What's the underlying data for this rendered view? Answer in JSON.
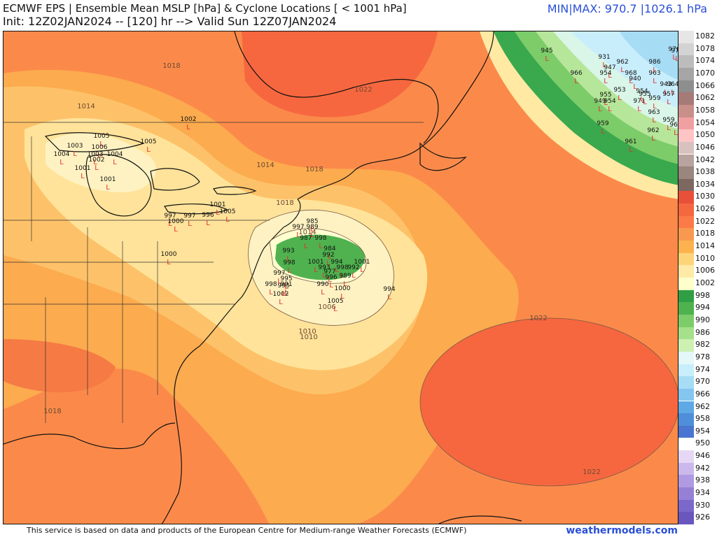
{
  "header": {
    "title": "ECMWF EPS | Ensemble Mean MSLP [hPa] & Cyclone Locations [ < 1001 hPa]",
    "init": "Init: 12Z02JAN2024 -- [120] hr --> Valid Sun 12Z07JAN2024",
    "minmax": "MIN|MAX: 970.7 |1026.1 hPa"
  },
  "footer": {
    "credit": "This service is based on data and products of the European Centre for Medium-range Weather Forecasts (ECMWF)",
    "site": "weathermodels.com"
  },
  "colorbar": [
    {
      "label": "1082",
      "color": "#e6e6e6"
    },
    {
      "label": "1078",
      "color": "#d3d3d3"
    },
    {
      "label": "1074",
      "color": "#bcbcbc"
    },
    {
      "label": "1070",
      "color": "#a5a5a5"
    },
    {
      "label": "1066",
      "color": "#8e8e8e"
    },
    {
      "label": "1062",
      "color": "#a67a76"
    },
    {
      "label": "1058",
      "color": "#c98f8a"
    },
    {
      "label": "1054",
      "color": "#f0a0a0"
    },
    {
      "label": "1050",
      "color": "#ffc4c4"
    },
    {
      "label": "1046",
      "color": "#d8c2bf"
    },
    {
      "label": "1042",
      "color": "#b8a39f"
    },
    {
      "label": "1038",
      "color": "#9a857f"
    },
    {
      "label": "1034",
      "color": "#7d6861"
    },
    {
      "label": "1030",
      "color": "#e8503a"
    },
    {
      "label": "1026",
      "color": "#f5673f"
    },
    {
      "label": "1022",
      "color": "#fb7a47"
    },
    {
      "label": "1018",
      "color": "#f99950"
    },
    {
      "label": "1014",
      "color": "#fcb24f"
    },
    {
      "label": "1010",
      "color": "#fdd47a"
    },
    {
      "label": "1006",
      "color": "#ffeaa8"
    },
    {
      "label": "1002",
      "color": "#ffffcc"
    },
    {
      "label": "998",
      "color": "#2f9e44"
    },
    {
      "label": "994",
      "color": "#4fb24f"
    },
    {
      "label": "990",
      "color": "#7ccc6a"
    },
    {
      "label": "986",
      "color": "#a6e08a"
    },
    {
      "label": "982",
      "color": "#cdf0b3"
    },
    {
      "label": "978",
      "color": "#e5f8f8"
    },
    {
      "label": "974",
      "color": "#c8eefc"
    },
    {
      "label": "970",
      "color": "#a7dcf5"
    },
    {
      "label": "966",
      "color": "#84c6ef"
    },
    {
      "label": "962",
      "color": "#5ea9e6"
    },
    {
      "label": "958",
      "color": "#4f8ed9"
    },
    {
      "label": "954",
      "color": "#4a75d0"
    },
    {
      "label": "950",
      "color": "#ffffff"
    },
    {
      "label": "946",
      "color": "#e6d8f5"
    },
    {
      "label": "942",
      "color": "#cbb8ec"
    },
    {
      "label": "938",
      "color": "#b09ae2"
    },
    {
      "label": "934",
      "color": "#9580d6"
    },
    {
      "label": "930",
      "color": "#7c68ca"
    },
    {
      "label": "926",
      "color": "#6a56bd"
    }
  ],
  "contour_labels": [
    {
      "text": "1018"
    },
    {
      "text": "1014"
    },
    {
      "text": "1022"
    },
    {
      "text": "1014"
    },
    {
      "text": "1018"
    },
    {
      "text": "1018"
    },
    {
      "text": "1014"
    },
    {
      "text": "1010"
    },
    {
      "text": "1006"
    },
    {
      "text": "1010"
    },
    {
      "text": "1022"
    },
    {
      "text": "1022"
    },
    {
      "text": "1018"
    }
  ],
  "cyclone_labels": [
    {
      "text": "1002"
    },
    {
      "text": "1005"
    },
    {
      "text": "1003"
    },
    {
      "text": "1006"
    },
    {
      "text": "1004"
    },
    {
      "text": "1003"
    },
    {
      "text": "1002"
    },
    {
      "text": "1004"
    },
    {
      "text": "1001"
    },
    {
      "text": "1001"
    },
    {
      "text": "1005"
    },
    {
      "text": "1001"
    },
    {
      "text": "1005"
    },
    {
      "text": "997"
    },
    {
      "text": "1000"
    },
    {
      "text": "997"
    },
    {
      "text": "996"
    },
    {
      "text": "1000"
    },
    {
      "text": "997"
    },
    {
      "text": "985"
    },
    {
      "text": "989"
    },
    {
      "text": "987"
    },
    {
      "text": "998"
    },
    {
      "text": "993"
    },
    {
      "text": "984"
    },
    {
      "text": "992"
    },
    {
      "text": "1001"
    },
    {
      "text": "994"
    },
    {
      "text": "1001"
    },
    {
      "text": "993"
    },
    {
      "text": "998"
    },
    {
      "text": "998"
    },
    {
      "text": "992"
    },
    {
      "text": "989"
    },
    {
      "text": "977"
    },
    {
      "text": "996"
    },
    {
      "text": "990"
    },
    {
      "text": "1000"
    },
    {
      "text": "1005"
    },
    {
      "text": "994"
    },
    {
      "text": "995"
    },
    {
      "text": "991"
    },
    {
      "text": "998"
    },
    {
      "text": "1002"
    },
    {
      "text": "993"
    },
    {
      "text": "997"
    },
    {
      "text": "945"
    },
    {
      "text": "966"
    },
    {
      "text": "931"
    },
    {
      "text": "962"
    },
    {
      "text": "947"
    },
    {
      "text": "954"
    },
    {
      "text": "968"
    },
    {
      "text": "940"
    },
    {
      "text": "963"
    },
    {
      "text": "986"
    },
    {
      "text": "970"
    },
    {
      "text": "976"
    },
    {
      "text": "955"
    },
    {
      "text": "953"
    },
    {
      "text": "949"
    },
    {
      "text": "954"
    },
    {
      "text": "959"
    },
    {
      "text": "971"
    },
    {
      "text": "943"
    },
    {
      "text": "964"
    },
    {
      "text": "957"
    },
    {
      "text": "963"
    },
    {
      "text": "959"
    },
    {
      "text": "962"
    },
    {
      "text": "966"
    },
    {
      "text": "961"
    },
    {
      "text": "959"
    },
    {
      "text": "955"
    },
    {
      "text": "954"
    }
  ]
}
